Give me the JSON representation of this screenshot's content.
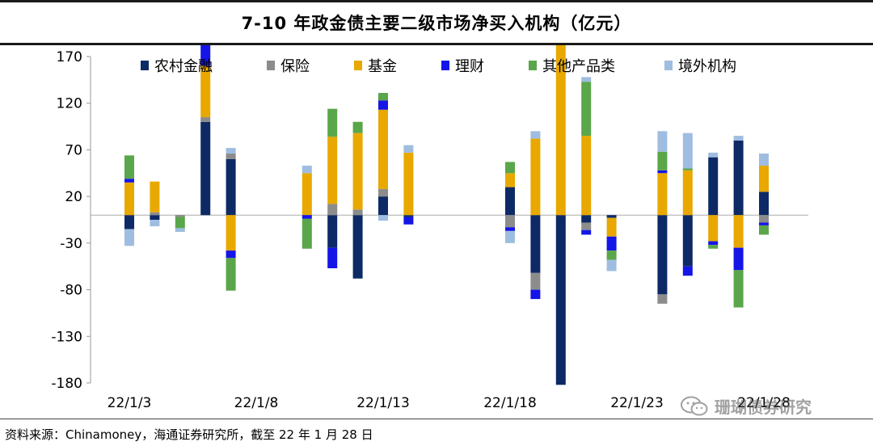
{
  "title": "7-10 年政金债主要二级市场净买入机构（亿元）",
  "source": "资料来源：Chinamoney，海通证券研究所，截至 22 年 1 月 28 日",
  "watermark": "珊瑚债券研究",
  "chart_data": {
    "type": "bar",
    "stacked": true,
    "title": "7-10 年政金债主要二级市场净买入机构（亿元）",
    "ylim": [
      -180,
      170
    ],
    "yticks": [
      170,
      120,
      70,
      20,
      -30,
      -80,
      -130,
      -180
    ],
    "xtick_labels": [
      "22/1/3",
      "22/1/8",
      "22/1/13",
      "22/1/18",
      "22/1/23",
      "22/1/28"
    ],
    "xtick_index": [
      0,
      5,
      10,
      15,
      20,
      25
    ],
    "dates": [
      "22/1/3",
      "22/1/4",
      "22/1/5",
      "22/1/6",
      "22/1/7",
      "22/1/8",
      "22/1/9",
      "22/1/10",
      "22/1/11",
      "22/1/12",
      "22/1/13",
      "22/1/14",
      "22/1/15",
      "22/1/16",
      "22/1/17",
      "22/1/18",
      "22/1/19",
      "22/1/20",
      "22/1/21",
      "22/1/22",
      "22/1/23",
      "22/1/24",
      "22/1/25",
      "22/1/26",
      "22/1/27",
      "22/1/28"
    ],
    "legend_position": "top",
    "series": [
      {
        "name": "农村金融",
        "color": "#0d2a66",
        "values": [
          -15,
          -5,
          0,
          100,
          60,
          0,
          0,
          0,
          -35,
          -68,
          20,
          -2,
          0,
          0,
          0,
          30,
          -62,
          -182,
          -8,
          -3,
          0,
          -85,
          -55,
          62,
          80,
          25
        ]
      },
      {
        "name": "保险",
        "color": "#8c8c8c",
        "values": [
          0,
          3,
          -2,
          5,
          6,
          0,
          0,
          0,
          12,
          6,
          8,
          0,
          0,
          0,
          0,
          -13,
          -18,
          0,
          -8,
          0,
          0,
          -10,
          0,
          0,
          0,
          -8
        ]
      },
      {
        "name": "基金",
        "color": "#e8a800",
        "values": [
          35,
          33,
          0,
          55,
          -38,
          0,
          0,
          45,
          72,
          82,
          85,
          67,
          0,
          0,
          0,
          15,
          82,
          190,
          85,
          -20,
          0,
          45,
          48,
          -28,
          -35,
          28
        ]
      },
      {
        "name": "理财",
        "color": "#1515e8",
        "values": [
          4,
          0,
          0,
          25,
          -8,
          0,
          0,
          -4,
          -22,
          0,
          10,
          -8,
          0,
          0,
          0,
          -4,
          -10,
          0,
          -5,
          -15,
          0,
          3,
          -10,
          -4,
          -24,
          -3
        ]
      },
      {
        "name": "其他产品类",
        "color": "#5aa64a",
        "values": [
          25,
          0,
          -12,
          0,
          -35,
          0,
          0,
          -32,
          30,
          12,
          8,
          0,
          0,
          0,
          0,
          12,
          0,
          5,
          58,
          -10,
          0,
          20,
          2,
          -4,
          -40,
          -10
        ]
      },
      {
        "name": "境外机构",
        "color": "#9fbde0",
        "values": [
          -18,
          -7,
          -4,
          0,
          6,
          0,
          0,
          8,
          0,
          0,
          -6,
          8,
          0,
          0,
          0,
          -13,
          8,
          0,
          5,
          -12,
          0,
          22,
          38,
          5,
          5,
          13
        ]
      }
    ]
  }
}
